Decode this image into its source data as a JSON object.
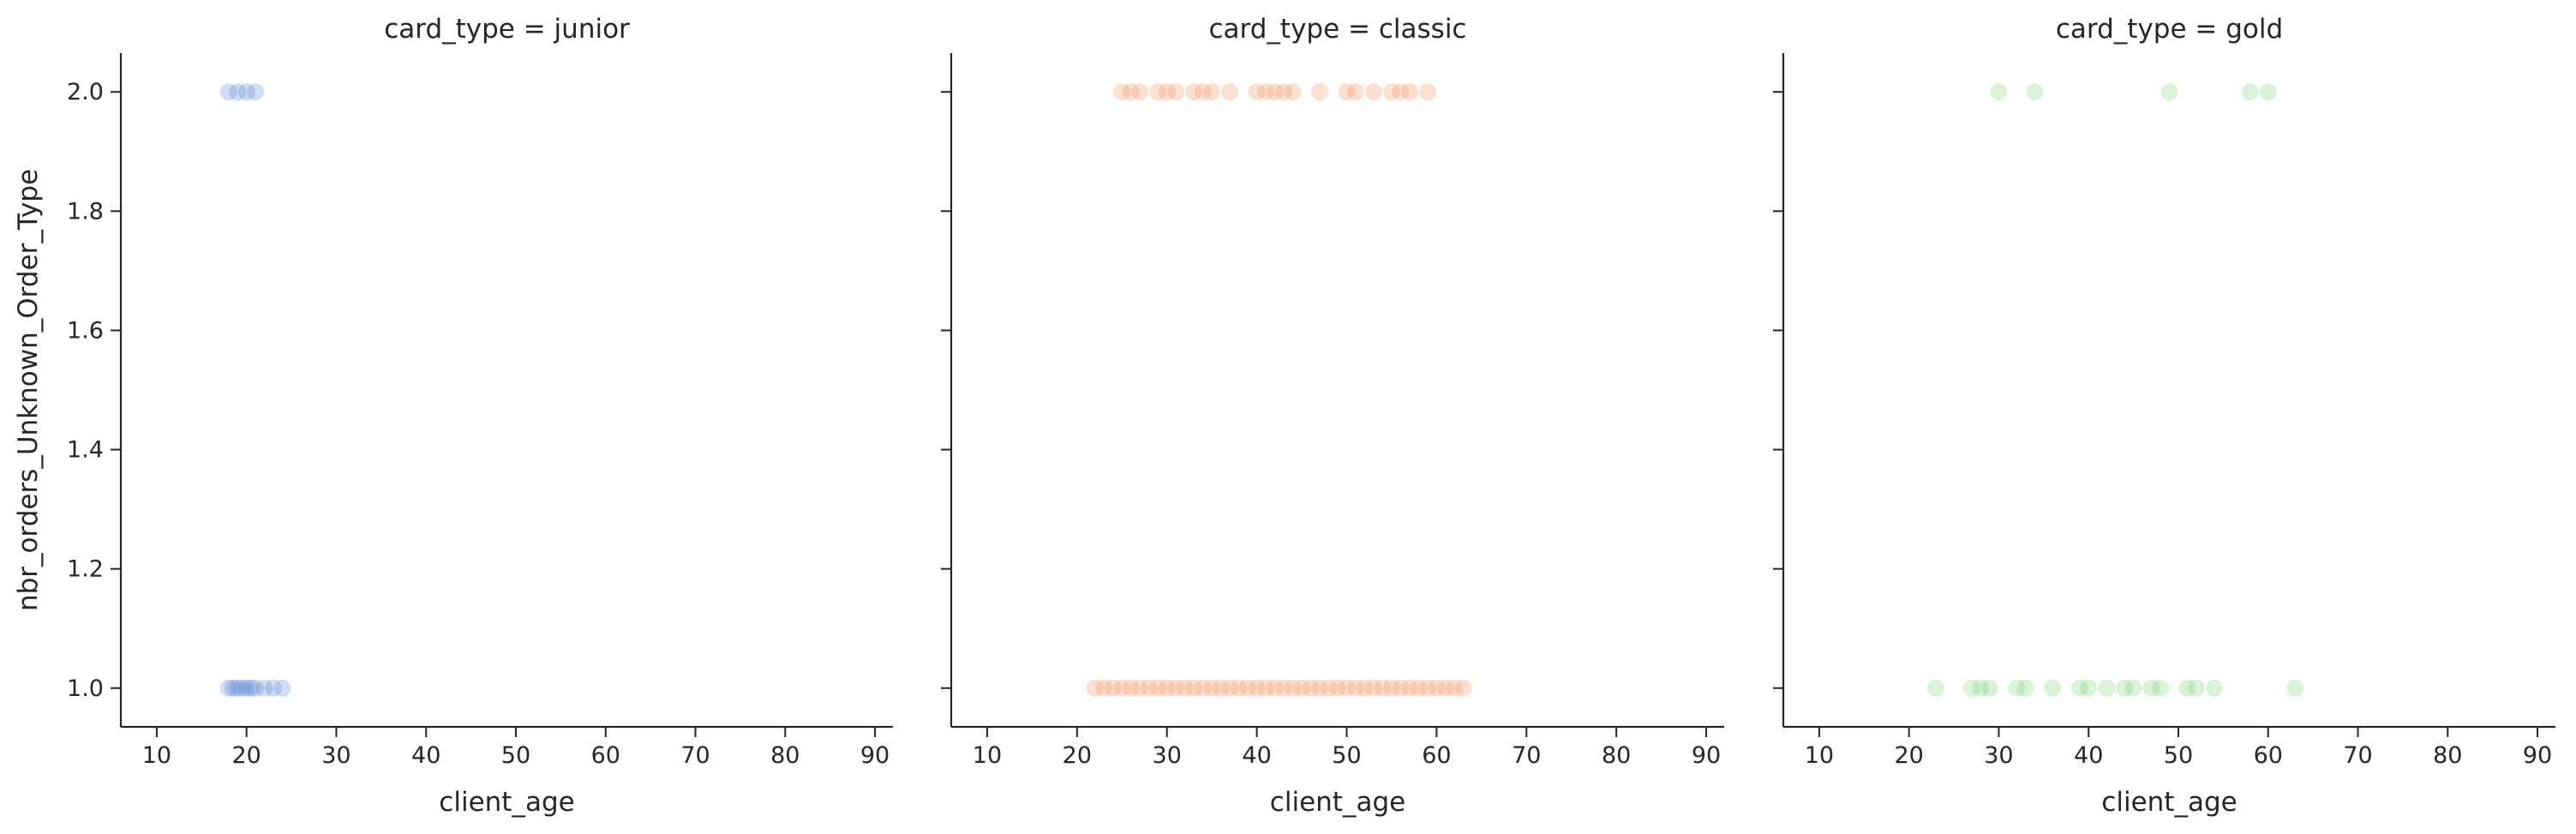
{
  "chart_data": [
    {
      "type": "scatter",
      "title": "card_type = junior",
      "xlabel": "client_age",
      "ylabel": "nbr_orders_Unknown_Order_Type",
      "xlim": [
        6,
        92
      ],
      "ylim": [
        0.935,
        2.065
      ],
      "xticks": [
        10,
        20,
        30,
        40,
        50,
        60,
        70,
        80,
        90
      ],
      "yticks": [
        1.0,
        1.2,
        1.4,
        1.6,
        1.8,
        2.0
      ],
      "xtick_labels": [
        "10",
        "20",
        "30",
        "40",
        "50",
        "60",
        "70",
        "80",
        "90"
      ],
      "ytick_labels": [
        "1.0",
        "1.2",
        "1.4",
        "1.6",
        "1.8",
        "2.0"
      ],
      "grid": false,
      "legend": "none",
      "color": "#4878d0",
      "series": [
        {
          "x": [
            18,
            19,
            20,
            21,
            18,
            18.5,
            19,
            19.5,
            20,
            20.5,
            21,
            22,
            23,
            24
          ],
          "y": [
            2,
            2,
            2,
            2,
            1,
            1,
            1,
            1,
            1,
            1,
            1,
            1,
            1,
            1
          ]
        }
      ]
    },
    {
      "type": "scatter",
      "title": "card_type = classic",
      "xlabel": "client_age",
      "ylabel": "",
      "xlim": [
        6,
        92
      ],
      "ylim": [
        0.935,
        2.065
      ],
      "xticks": [
        10,
        20,
        30,
        40,
        50,
        60,
        70,
        80,
        90
      ],
      "yticks": [
        1.0,
        1.2,
        1.4,
        1.6,
        1.8,
        2.0
      ],
      "xtick_labels": [
        "10",
        "20",
        "30",
        "40",
        "50",
        "60",
        "70",
        "80",
        "90"
      ],
      "ytick_labels": [],
      "grid": false,
      "legend": "none",
      "color": "#ee854a",
      "series": [
        {
          "x": [
            25,
            26,
            27,
            29,
            30,
            31,
            33,
            34,
            35,
            37,
            40,
            41,
            42,
            43,
            44,
            47,
            50,
            51,
            53,
            55,
            56,
            57,
            59,
            22,
            23,
            24,
            25,
            26,
            27,
            28,
            29,
            30,
            31,
            32,
            33,
            34,
            35,
            36,
            37,
            38,
            39,
            40,
            41,
            42,
            43,
            44,
            45,
            46,
            47,
            48,
            49,
            50,
            51,
            52,
            53,
            54,
            55,
            56,
            57,
            58,
            59,
            60,
            61,
            62,
            63
          ],
          "y": [
            2,
            2,
            2,
            2,
            2,
            2,
            2,
            2,
            2,
            2,
            2,
            2,
            2,
            2,
            2,
            2,
            2,
            2,
            2,
            2,
            2,
            2,
            2,
            1,
            1,
            1,
            1,
            1,
            1,
            1,
            1,
            1,
            1,
            1,
            1,
            1,
            1,
            1,
            1,
            1,
            1,
            1,
            1,
            1,
            1,
            1,
            1,
            1,
            1,
            1,
            1,
            1,
            1,
            1,
            1,
            1,
            1,
            1,
            1,
            1,
            1,
            1,
            1,
            1,
            1
          ]
        }
      ]
    },
    {
      "type": "scatter",
      "title": "card_type = gold",
      "xlabel": "client_age",
      "ylabel": "",
      "xlim": [
        6,
        92
      ],
      "ylim": [
        0.935,
        2.065
      ],
      "xticks": [
        10,
        20,
        30,
        40,
        50,
        60,
        70,
        80,
        90
      ],
      "yticks": [
        1.0,
        1.2,
        1.4,
        1.6,
        1.8,
        2.0
      ],
      "xtick_labels": [
        "10",
        "20",
        "30",
        "40",
        "50",
        "60",
        "70",
        "80",
        "90"
      ],
      "ytick_labels": [],
      "grid": false,
      "legend": "none",
      "color": "#6acc64",
      "series": [
        {
          "x": [
            30,
            34,
            49,
            58,
            60,
            23,
            27,
            28,
            29,
            32,
            33,
            36,
            39,
            40,
            42,
            44,
            45,
            47,
            48,
            51,
            52,
            54,
            63
          ],
          "y": [
            2,
            2,
            2,
            2,
            2,
            1,
            1,
            1,
            1,
            1,
            1,
            1,
            1,
            1,
            1,
            1,
            1,
            1,
            1,
            1,
            1,
            1,
            1
          ]
        }
      ]
    }
  ]
}
